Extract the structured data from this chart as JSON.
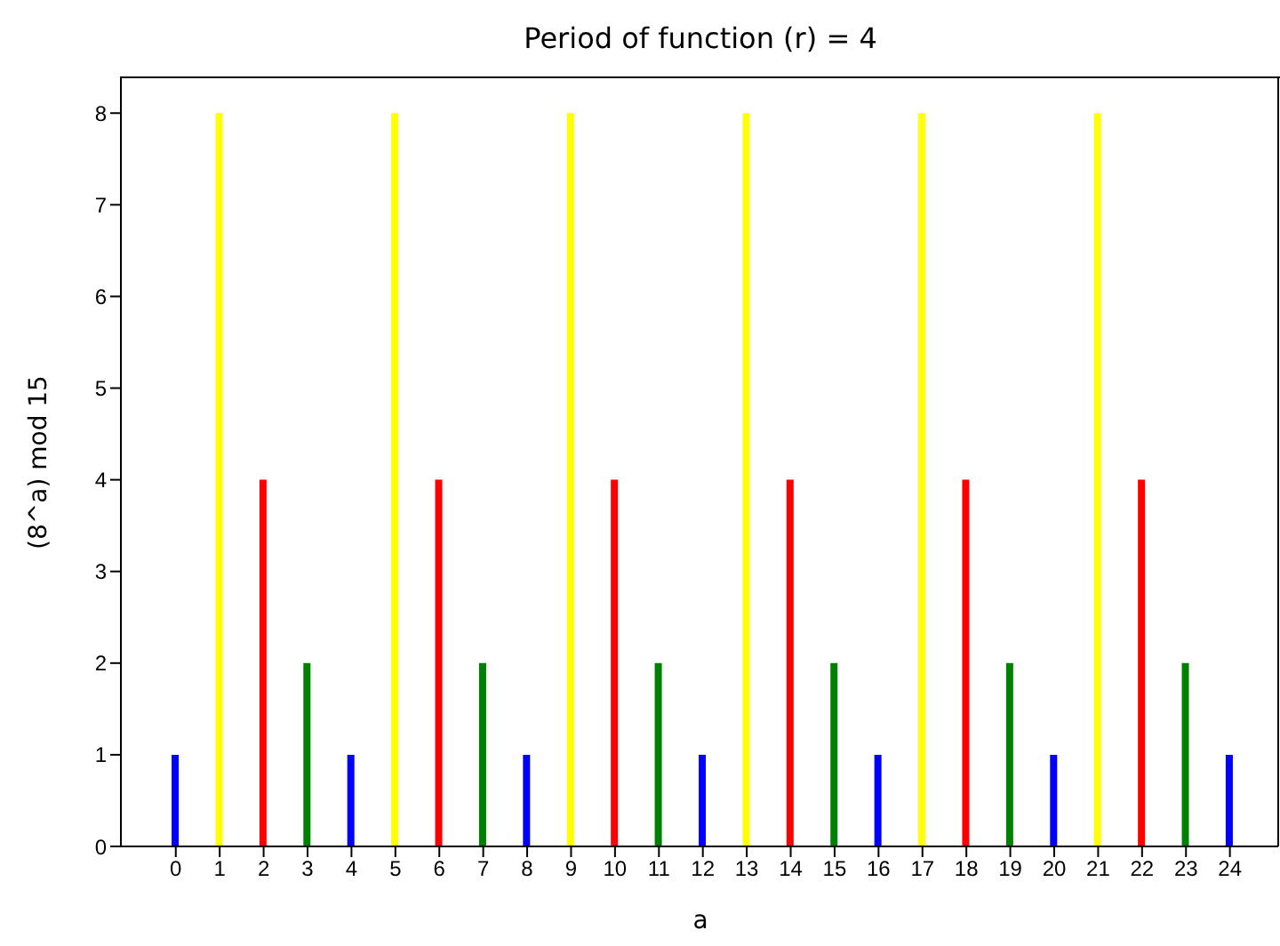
{
  "chart_data": {
    "type": "bar",
    "title": "Period of function (r) = 4",
    "xlabel": "a",
    "ylabel": "(8^a) mod 15",
    "x": [
      0,
      1,
      2,
      3,
      4,
      5,
      6,
      7,
      8,
      9,
      10,
      11,
      12,
      13,
      14,
      15,
      16,
      17,
      18,
      19,
      20,
      21,
      22,
      23,
      24
    ],
    "values": [
      1,
      8,
      4,
      2,
      1,
      8,
      4,
      2,
      1,
      8,
      4,
      2,
      1,
      8,
      4,
      2,
      1,
      8,
      4,
      2,
      1,
      8,
      4,
      2,
      1
    ],
    "colors": [
      "#0000ff",
      "#ffff00",
      "#ff0000",
      "#008000",
      "#0000ff",
      "#ffff00",
      "#ff0000",
      "#008000",
      "#0000ff",
      "#ffff00",
      "#ff0000",
      "#008000",
      "#0000ff",
      "#ffff00",
      "#ff0000",
      "#008000",
      "#0000ff",
      "#ffff00",
      "#ff0000",
      "#008000",
      "#0000ff",
      "#ffff00",
      "#ff0000",
      "#008000",
      "#0000ff"
    ],
    "xlim": [
      -1.25,
      25.1
    ],
    "xticks": [
      0,
      1,
      2,
      3,
      4,
      5,
      6,
      7,
      8,
      9,
      10,
      11,
      12,
      13,
      14,
      15,
      16,
      17,
      18,
      19,
      20,
      21,
      22,
      23,
      24
    ],
    "ylim": [
      0,
      8.4
    ],
    "yticks": [
      0,
      1,
      2,
      3,
      4,
      5,
      6,
      7,
      8
    ],
    "grid": false,
    "legend": false
  }
}
